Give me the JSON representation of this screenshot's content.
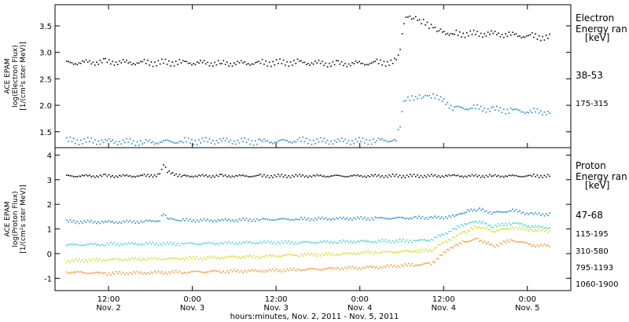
{
  "chart_data": [
    {
      "type": "scatter",
      "panel": "electron",
      "ylabel_lines": [
        "ACE EPAM",
        "log(Electron Flux)",
        "[1/(cm²s ster MeV)]"
      ],
      "ylim": [
        1.2,
        3.9
      ],
      "yticks": [
        1.5,
        2.0,
        2.5,
        3.0,
        3.5
      ],
      "legend_title_lines": [
        "Electron",
        "Energy ran",
        "[keV]"
      ],
      "series": [
        {
          "name": "38-53",
          "color": "#000000",
          "points": [
            [
              0,
              2.8
            ],
            [
              10,
              2.82
            ],
            [
              20,
              2.8
            ],
            [
              30,
              2.81
            ],
            [
              40,
              2.79
            ],
            [
              50,
              2.8
            ],
            [
              60,
              2.81
            ],
            [
              70,
              2.78
            ],
            [
              80,
              2.8
            ],
            [
              85,
              2.82
            ],
            [
              86,
              3.05
            ],
            [
              87,
              3.55
            ],
            [
              88,
              3.65
            ],
            [
              90,
              3.62
            ],
            [
              92,
              3.55
            ],
            [
              94,
              3.48
            ],
            [
              96,
              3.4
            ],
            [
              100,
              3.35
            ],
            [
              110,
              3.35
            ],
            [
              115,
              3.33
            ],
            [
              120,
              3.3
            ],
            [
              125,
              3.28
            ]
          ]
        },
        {
          "name": "175-315",
          "color": "#1a7fd0",
          "points": [
            [
              0,
              1.33
            ],
            [
              10,
              1.32
            ],
            [
              20,
              1.3
            ],
            [
              30,
              1.32
            ],
            [
              40,
              1.33
            ],
            [
              50,
              1.31
            ],
            [
              60,
              1.33
            ],
            [
              70,
              1.32
            ],
            [
              80,
              1.33
            ],
            [
              85,
              1.35
            ],
            [
              86,
              1.6
            ],
            [
              87,
              2.05
            ],
            [
              88,
              2.1
            ],
            [
              90,
              2.12
            ],
            [
              92,
              2.15
            ],
            [
              94,
              2.16
            ],
            [
              96,
              2.12
            ],
            [
              100,
              1.95
            ],
            [
              105,
              1.95
            ],
            [
              110,
              1.92
            ],
            [
              115,
              1.9
            ],
            [
              120,
              1.88
            ],
            [
              125,
              1.87
            ]
          ]
        }
      ]
    },
    {
      "type": "scatter",
      "panel": "proton",
      "ylabel_lines": [
        "ACE EPAM",
        "log(Proton Flux)",
        "[1/(cm²s ster MeV)]"
      ],
      "ylim": [
        -1.5,
        4.3
      ],
      "yticks": [
        -1,
        0,
        1,
        2,
        3,
        4
      ],
      "xlabel": "hours:minutes, Nov.  2, 2011 - Nov.  5, 2011",
      "xticks": [
        {
          "h": 6,
          "top": "12:00",
          "bottom": "Nov. 2"
        },
        {
          "h": 18,
          "top": "0:00",
          "bottom": "Nov. 3"
        },
        {
          "h": 30,
          "top": "12:00",
          "bottom": "Nov. 3"
        },
        {
          "h": 42,
          "top": "0:00",
          "bottom": "Nov. 4"
        },
        {
          "h": 54,
          "top": "12:00",
          "bottom": "Nov. 4"
        },
        {
          "h": 66,
          "top": "0:00",
          "bottom": "Nov. 5"
        }
      ],
      "legend_title_lines": [
        "Proton",
        "Energy ran",
        "[keV]"
      ],
      "series": [
        {
          "name": "47-68",
          "color": "#000000",
          "points": [
            [
              0,
              3.15
            ],
            [
              10,
              3.15
            ],
            [
              20,
              3.15
            ],
            [
              24,
              3.2
            ],
            [
              25,
              3.6
            ],
            [
              26,
              3.3
            ],
            [
              30,
              3.15
            ],
            [
              40,
              3.15
            ],
            [
              50,
              3.15
            ],
            [
              100,
              3.15
            ],
            [
              110,
              3.15
            ],
            [
              120,
              3.15
            ],
            [
              125,
              3.15
            ]
          ]
        },
        {
          "name": "115-195",
          "color": "#1a7fd0",
          "points": [
            [
              0,
              1.3
            ],
            [
              10,
              1.28
            ],
            [
              20,
              1.3
            ],
            [
              24,
              1.35
            ],
            [
              25,
              1.6
            ],
            [
              26,
              1.4
            ],
            [
              30,
              1.35
            ],
            [
              40,
              1.35
            ],
            [
              50,
              1.38
            ],
            [
              60,
              1.4
            ],
            [
              70,
              1.42
            ],
            [
              80,
              1.43
            ],
            [
              90,
              1.45
            ],
            [
              94,
              1.45
            ],
            [
              100,
              1.5
            ],
            [
              103,
              1.7
            ],
            [
              106,
              1.8
            ],
            [
              110,
              1.65
            ],
            [
              115,
              1.75
            ],
            [
              120,
              1.6
            ],
            [
              125,
              1.6
            ]
          ]
        },
        {
          "name": "310-580",
          "color": "#2ad4d4",
          "points": [
            [
              0,
              0.35
            ],
            [
              10,
              0.38
            ],
            [
              20,
              0.4
            ],
            [
              30,
              0.4
            ],
            [
              40,
              0.42
            ],
            [
              50,
              0.45
            ],
            [
              60,
              0.45
            ],
            [
              70,
              0.48
            ],
            [
              80,
              0.5
            ],
            [
              90,
              0.52
            ],
            [
              94,
              0.55
            ],
            [
              100,
              1.0
            ],
            [
              103,
              1.2
            ],
            [
              106,
              1.3
            ],
            [
              110,
              1.1
            ],
            [
              115,
              1.25
            ],
            [
              120,
              1.1
            ],
            [
              125,
              1.05
            ]
          ]
        },
        {
          "name": "795-1193",
          "color": "#c8e000",
          "points": [
            [
              0,
              -0.3
            ],
            [
              10,
              -0.25
            ],
            [
              20,
              -0.22
            ],
            [
              30,
              -0.2
            ],
            [
              40,
              -0.15
            ],
            [
              50,
              -0.12
            ],
            [
              60,
              -0.05
            ],
            [
              70,
              -0.02
            ],
            [
              80,
              0.05
            ],
            [
              90,
              0.1
            ],
            [
              94,
              0.12
            ],
            [
              100,
              0.7
            ],
            [
              103,
              0.9
            ],
            [
              106,
              1.1
            ],
            [
              110,
              0.9
            ],
            [
              115,
              1.05
            ],
            [
              120,
              0.95
            ],
            [
              125,
              0.9
            ]
          ]
        },
        {
          "name": "1060-1900",
          "color": "#ff8c1a",
          "points": [
            [
              0,
              -0.75
            ],
            [
              10,
              -0.8
            ],
            [
              20,
              -0.78
            ],
            [
              30,
              -0.75
            ],
            [
              40,
              -0.72
            ],
            [
              50,
              -0.7
            ],
            [
              60,
              -0.65
            ],
            [
              70,
              -0.6
            ],
            [
              80,
              -0.55
            ],
            [
              90,
              -0.45
            ],
            [
              94,
              -0.4
            ],
            [
              100,
              0.35
            ],
            [
              103,
              0.5
            ],
            [
              106,
              0.6
            ],
            [
              110,
              0.3
            ],
            [
              115,
              0.55
            ],
            [
              120,
              0.35
            ],
            [
              125,
              0.3
            ]
          ]
        }
      ]
    }
  ]
}
